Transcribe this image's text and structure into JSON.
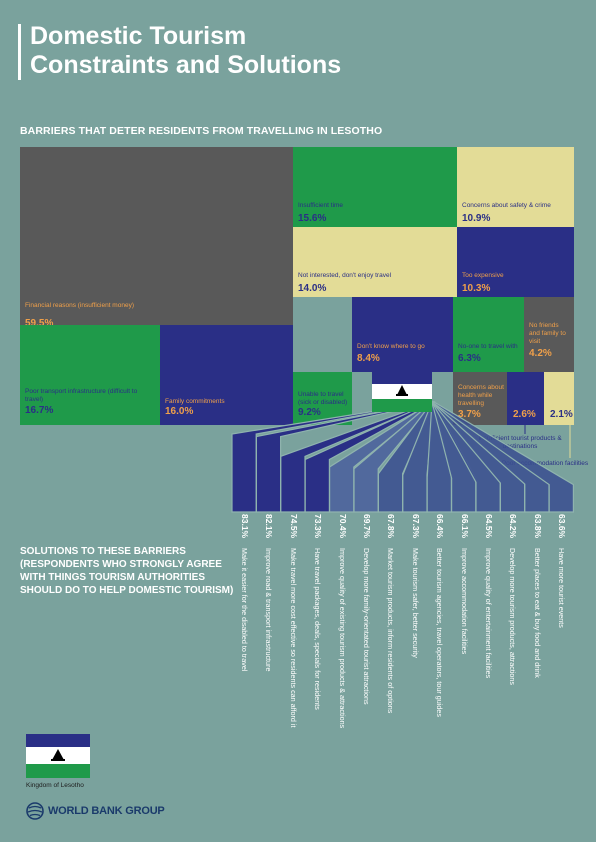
{
  "title": {
    "line1": "Domestic Tourism",
    "line2": "Constraints and Solutions"
  },
  "barriers_heading": "BARRIERS THAT DETER RESIDENTS FROM TRAVELLING IN LESOTHO",
  "solutions_heading": {
    "line1": "SOLUTIONS TO THESE BARRIERS",
    "line2": "(RESPONDENTS WHO STRONGLY AGREE",
    "line3": "WITH THINGS TOURISM AUTHORITIES",
    "line4": "SHOULD DO TO HELP DOMESTIC TOURISM)"
  },
  "colors": {
    "background": "#7aa29d",
    "gray": "#595959",
    "green": "#1f9a4a",
    "navy": "#2a2f86",
    "cream": "#e3dc97",
    "orange_text": "#f0a04a",
    "navy_text": "#2a2f86"
  },
  "flag_caption": "Kingdom of Lesotho",
  "logo_text": "WORLD BANK GROUP",
  "chart_data": [
    {
      "type": "treemap",
      "title": "BARRIERS THAT DETER RESIDENTS FROM TRAVELLING IN LESOTHO",
      "items": [
        {
          "label": "Financial reasons (insufficient money)",
          "value": 59.5,
          "display": "59.5%",
          "color": "gray"
        },
        {
          "label": "Insufficient time",
          "value": 15.6,
          "display": "15.6%",
          "color": "green"
        },
        {
          "label": "Concerns about safety & crime",
          "value": 10.9,
          "display": "10.9%",
          "color": "cream"
        },
        {
          "label": "Not interested, don't enjoy travel",
          "value": 14.0,
          "display": "14.0%",
          "color": "cream"
        },
        {
          "label": "Too expensive",
          "value": 10.3,
          "display": "10.3%",
          "color": "navy"
        },
        {
          "label": "Don't know where to go",
          "value": 8.4,
          "display": "8.4%",
          "color": "navy"
        },
        {
          "label": "No-one to travel with",
          "value": 6.3,
          "display": "6.3%",
          "color": "green"
        },
        {
          "label": "No friends and family to visit",
          "value": 4.2,
          "display": "4.2%",
          "color": "gray"
        },
        {
          "label": "Poor transport infrastructure (difficult to travel)",
          "value": 16.7,
          "display": "16.7%",
          "color": "green"
        },
        {
          "label": "Family commitments",
          "value": 16.0,
          "display": "16.0%",
          "color": "navy"
        },
        {
          "label": "Unable to travel (sick or disabled)",
          "value": 9.2,
          "display": "9.2%",
          "color": "green"
        },
        {
          "label": "Concerns about health while travelling",
          "value": 3.7,
          "display": "3.7%",
          "color": "gray"
        },
        {
          "label": "Insufficient tourist products & destinations",
          "value": 2.6,
          "display": "2.6%",
          "color": "navy"
        },
        {
          "label": "Poor accommodation facilities",
          "value": 2.1,
          "display": "2.1%",
          "color": "cream"
        }
      ]
    },
    {
      "type": "bar",
      "title": "SOLUTIONS TO THESE BARRIERS (RESPONDENTS WHO STRONGLY AGREE WITH THINGS TOURISM AUTHORITIES SHOULD DO TO HELP DOMESTIC TOURISM)",
      "categories": [
        "Make it easier for the disabled to travel",
        "Improve road & transport infrastructure",
        "Make travel more cost effective so residents can afford it",
        "Have travel packages, deals, specials for residents",
        "Improve quality of existing tourism products & attractions",
        "Develop more family-orientated tourist attractions",
        "Market tourism products, inform residents of options",
        "Make tourism safer, better security",
        "Better tourism agencies, travel operators, tour guides",
        "Improve accommodation facilities",
        "Improve quality of entertainment facilities",
        "Develop more tourism products, attractions",
        "Better places to eat & buy food and drink",
        "Have more tourist events"
      ],
      "values": [
        83.1,
        82.1,
        74.5,
        73.3,
        70.4,
        69.7,
        67.8,
        67.3,
        66.4,
        66.1,
        64.5,
        64.2,
        63.8,
        63.6
      ],
      "value_labels": [
        "83.1%",
        "82.1%",
        "74.5%",
        "73.3%",
        "70.4%",
        "69.7%",
        "67.8%",
        "67.3%",
        "66.4%",
        "66.1%",
        "64.5%",
        "64.2%",
        "63.8%",
        "63.6%"
      ]
    }
  ]
}
